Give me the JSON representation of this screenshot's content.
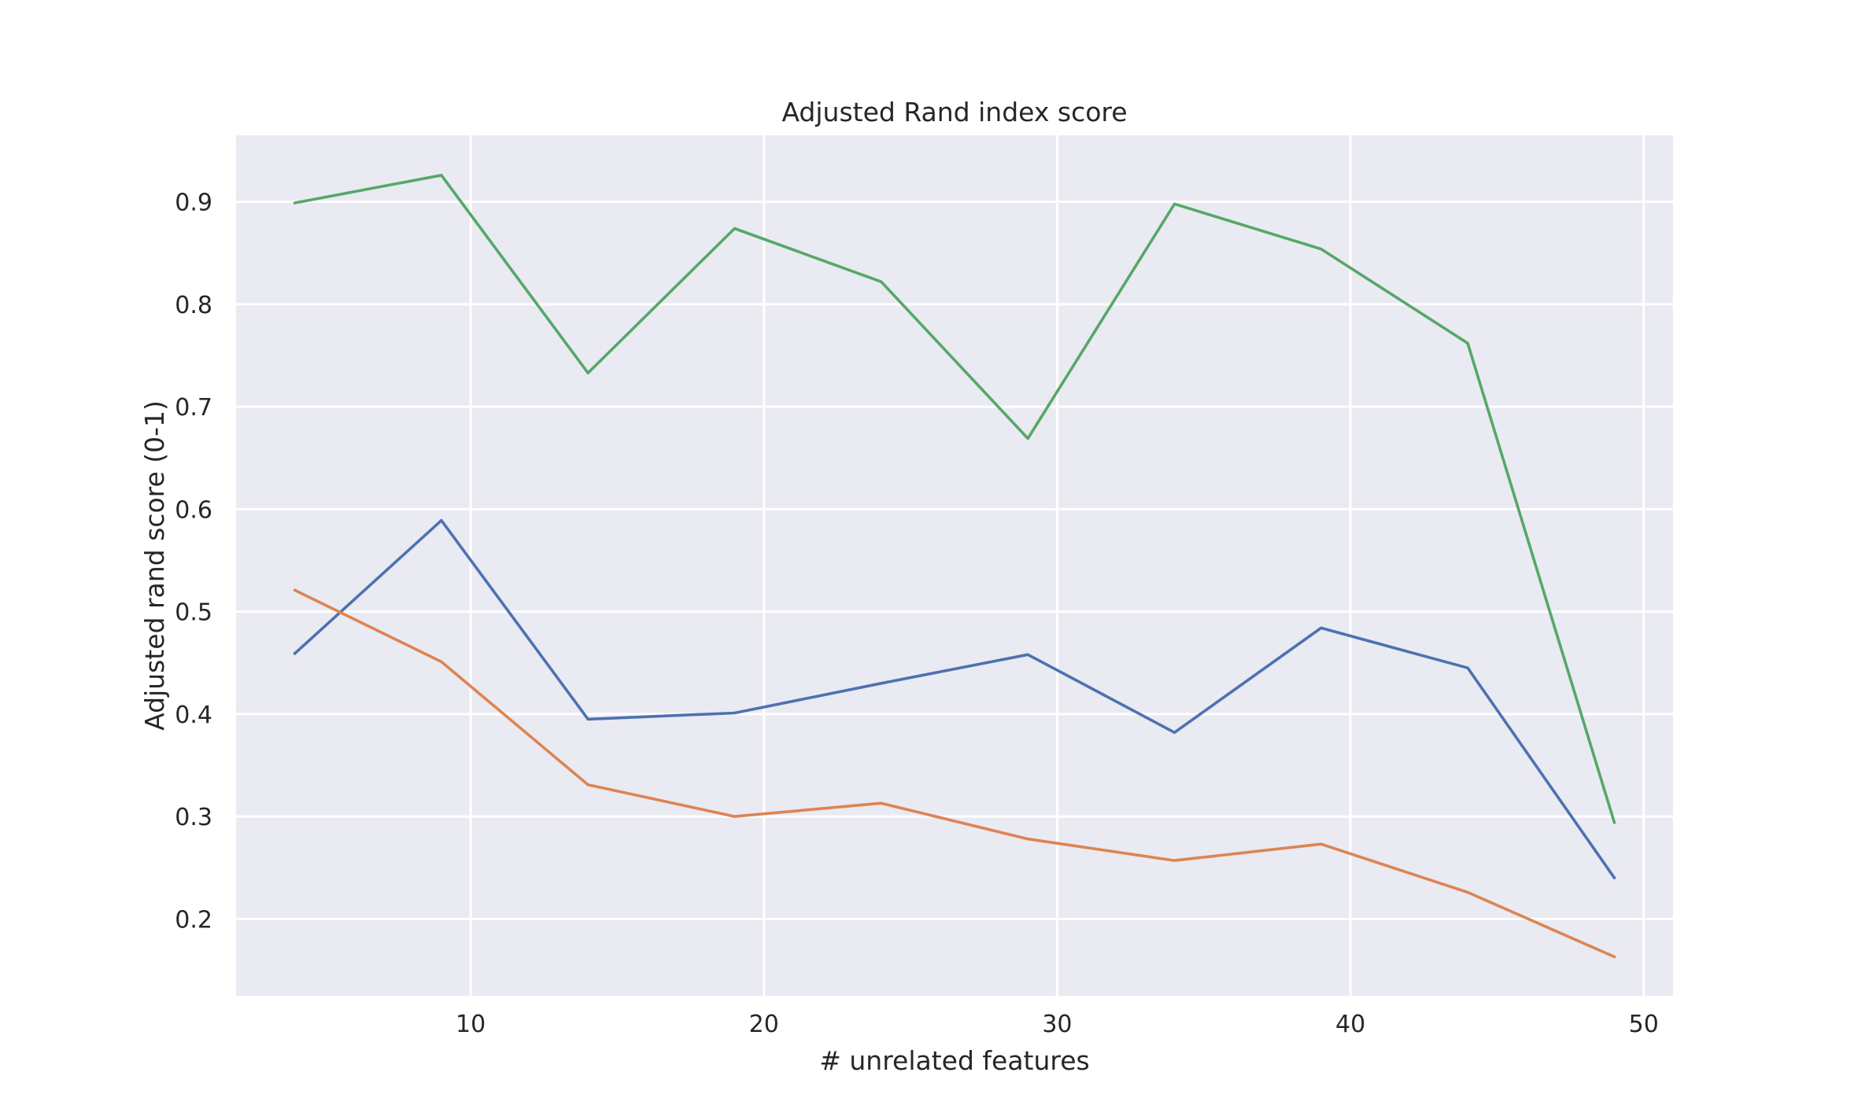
{
  "chart_data": {
    "type": "line",
    "title": "Adjusted Rand index score",
    "xlabel": "# unrelated features",
    "ylabel": "Adjusted rand score (0-1)",
    "xlim": [
      2,
      51
    ],
    "ylim": [
      0.125,
      0.965
    ],
    "xticks": [
      10,
      20,
      30,
      40,
      50
    ],
    "yticks": [
      0.2,
      0.3,
      0.4,
      0.5,
      0.6,
      0.7,
      0.8,
      0.9
    ],
    "xtick_labels": [
      "10",
      "20",
      "30",
      "40",
      "50"
    ],
    "ytick_labels": [
      "0.2",
      "0.3",
      "0.4",
      "0.5",
      "0.6",
      "0.7",
      "0.8",
      "0.9"
    ],
    "grid": true,
    "legend": null,
    "x": [
      4,
      9,
      14,
      19,
      24,
      29,
      34,
      39,
      44,
      49
    ],
    "series": [
      {
        "color": "#4c72b0",
        "values": [
          0.459,
          0.589,
          0.395,
          0.401,
          0.43,
          0.458,
          0.382,
          0.484,
          0.445,
          0.24
        ]
      },
      {
        "color": "#dd8452",
        "values": [
          0.521,
          0.451,
          0.331,
          0.3,
          0.313,
          0.278,
          0.257,
          0.273,
          0.226,
          0.163
        ]
      },
      {
        "color": "#55a868",
        "values": [
          0.899,
          0.926,
          0.733,
          0.874,
          0.822,
          0.669,
          0.898,
          0.854,
          0.762,
          0.294
        ]
      }
    ]
  }
}
